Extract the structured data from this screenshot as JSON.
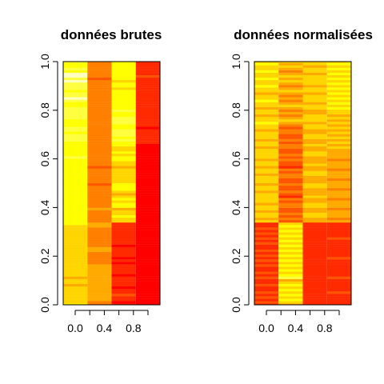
{
  "chart_data": [
    {
      "type": "heatmap",
      "title": "données brutes",
      "xlabel": "",
      "ylabel": "",
      "xlim": [
        -0.1667,
        1.1667
      ],
      "ylim": [
        0,
        1
      ],
      "x_ticks": [
        "0.0",
        "0.4",
        "0.8"
      ],
      "y_ticks": [
        "0.0",
        "0.2",
        "0.4",
        "0.6",
        "0.8",
        "1.0"
      ],
      "palette": [
        "#FF0000",
        "#FF2A00",
        "#FF5500",
        "#FF8000",
        "#FFAA00",
        "#FFD500",
        "#FFFF00",
        "#FFFF40",
        "#FFFFBF"
      ],
      "columns": [
        {
          "x": 0.0,
          "rows": "6555555545545555555555555555555556666666666666666666666666667666666777677666777776678776777878867667"
        },
        {
          "x": 0.3333,
          "rows": "3344444444444444433333443333333344333334333333333233333323333333333333333333333333333333333323333333"
        },
        {
          "x": 0.6667,
          "rows": "1011211011110111101011110111111111556554665654566655555545566565566767776677766766666666566566666666"
        },
        {
          "x": 1.0,
          "rows": "0000000000000000000000000000000000000000000000000000000000000000001111110111111111111111111112111111"
        }
      ]
    },
    {
      "type": "heatmap",
      "title": "données normalisées",
      "xlabel": "",
      "ylabel": "",
      "xlim": [
        -0.1667,
        1.1667
      ],
      "ylim": [
        0,
        1
      ],
      "x_ticks": [
        "0.0",
        "0.4",
        "0.8"
      ],
      "y_ticks": [
        "0.0",
        "0.2",
        "0.4",
        "0.6",
        "0.8",
        "1.0"
      ],
      "palette": [
        "#FF0000",
        "#FF2A00",
        "#FF5500",
        "#FF8000",
        "#FFAA00",
        "#FFD500",
        "#FFFF00",
        "#FFFF40",
        "#FFFFBF"
      ],
      "columns": [
        {
          "x": 0.0,
          "rows": "1212121121121211212121211212121211545545545555455455545545545555455455545565545545565545565565565565"
        },
        {
          "x": 0.3333,
          "rows": "4565656565476565656565656565656565232322332312322322332312232322332322332345434345434345434545434545"
        },
        {
          "x": 0.6667,
          "rows": "1111111111111111111111111111111111445544554454445544455445444554454455445545554455455545545555455455"
        },
        {
          "x": 1.0,
          "rows": "1111121111121111111211111112111111434443444344434443444344434444545454545454545565656565656565656565"
        }
      ]
    }
  ]
}
